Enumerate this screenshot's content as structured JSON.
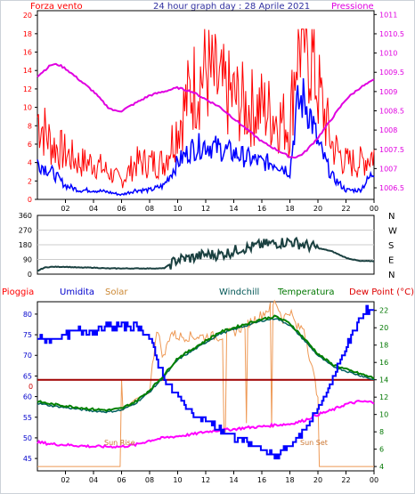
{
  "header": {
    "left_label": "Forza vento",
    "title": "24 hour graph day : 28 Aprile 2021",
    "right_label": "Pressione"
  },
  "colors": {
    "frame": "#ccd2d8",
    "wind_gust": "#ff0000",
    "wind_avg": "#0000ff",
    "pressure": "#e000e0",
    "direction": "#1a4040",
    "humidity": "#0000ff",
    "solar": "#ee9955",
    "windchill": "#006060",
    "temperature": "#008000",
    "dew_point": "#ff00ff",
    "rain": "#a00000",
    "label_red": "#ff0000",
    "label_humidity": "#0000cc",
    "label_solar": "#cc8833",
    "label_windchill": "#005555",
    "label_temp": "#007700",
    "label_dew": "#dd0000"
  },
  "chart_data": [
    {
      "type": "line",
      "title": "24 hour graph day : 28 Aprile 2021",
      "x_ticks": [
        "02",
        "04",
        "06",
        "08",
        "10",
        "12",
        "14",
        "16",
        "18",
        "20",
        "22",
        "00"
      ],
      "y_left_ticks": [
        "0",
        "2",
        "4",
        "6",
        "8",
        "10",
        "12",
        "14",
        "16",
        "18",
        "20"
      ],
      "y_right_ticks": [
        "1006.5",
        "1007",
        "1007.5",
        "1008",
        "1008.5",
        "1009",
        "1009.5",
        "1010",
        "1010.5",
        "1011"
      ],
      "ylim_left": [
        0,
        20.5
      ],
      "ylim_right": [
        1006.2,
        1011.1
      ],
      "xlim_hours": [
        0,
        24
      ],
      "series": [
        {
          "name": "Forza vento",
          "axis": "left",
          "x": [
            0,
            1,
            2,
            3,
            4,
            5,
            6,
            7,
            8,
            9,
            10,
            11,
            12,
            13,
            14,
            15,
            16,
            17,
            18,
            18.5,
            19,
            19.5,
            20,
            21,
            22,
            23,
            24
          ],
          "values": [
            9,
            6,
            5,
            4,
            4,
            3,
            2,
            4,
            4,
            4,
            8,
            12,
            14,
            12,
            11,
            10,
            10,
            9,
            8,
            17,
            18,
            16,
            12,
            6,
            4,
            4,
            5
          ]
        },
        {
          "name": "",
          "axis": "left",
          "x": [
            0,
            1,
            2,
            3,
            4,
            5,
            6,
            7,
            8,
            9,
            10,
            11,
            12,
            13,
            14,
            15,
            16,
            17,
            18,
            18.5,
            19,
            19.5,
            20,
            21,
            22,
            23,
            24
          ],
          "values": [
            4,
            3,
            1.5,
            1,
            1,
            0.8,
            0.5,
            1,
            1,
            1.5,
            4,
            5.5,
            6,
            5.5,
            5,
            4.5,
            4,
            4,
            3,
            10,
            11,
            9,
            6,
            2.5,
            1,
            1,
            3
          ]
        },
        {
          "name": "Pressione",
          "axis": "right",
          "x": [
            0,
            1,
            1.5,
            2,
            3,
            4,
            5,
            5.5,
            6,
            7,
            8,
            9,
            10,
            11,
            12,
            13,
            14,
            15,
            16,
            17,
            18,
            18.5,
            19,
            20,
            21,
            22,
            23,
            24
          ],
          "values": [
            1009.4,
            1009.7,
            1009.7,
            1009.6,
            1009.3,
            1009.0,
            1008.6,
            1008.5,
            1008.5,
            1008.7,
            1008.9,
            1009.0,
            1009.1,
            1009.0,
            1008.8,
            1008.6,
            1008.3,
            1008.0,
            1007.7,
            1007.5,
            1007.3,
            1007.3,
            1007.4,
            1007.8,
            1008.3,
            1008.8,
            1009.1,
            1009.3
          ]
        }
      ]
    },
    {
      "type": "line",
      "y_right_ticks": [
        "N",
        "W",
        "S",
        "E",
        "N"
      ],
      "y_left_ticks": [
        "0",
        "90",
        "180",
        "270",
        "360"
      ],
      "ylim": [
        0,
        360
      ],
      "xlim_hours": [
        0,
        24
      ],
      "series": [
        {
          "name": "",
          "x": [
            0,
            0.5,
            1,
            2,
            3,
            4,
            5,
            6,
            7,
            8,
            9,
            10,
            11,
            12,
            13,
            14,
            14.5,
            15,
            16,
            17,
            18,
            19,
            20,
            21,
            22,
            23,
            24
          ],
          "values": [
            20,
            40,
            45,
            45,
            40,
            40,
            35,
            35,
            35,
            35,
            35,
            90,
            100,
            120,
            120,
            140,
            160,
            160,
            180,
            190,
            200,
            180,
            160,
            140,
            100,
            80,
            80
          ]
        }
      ]
    },
    {
      "type": "line",
      "labels": {
        "rain": "Pioggia",
        "humidity": "Umidita",
        "solar": "Solar",
        "windchill": "Windchill",
        "temperature": "Temperatura",
        "dew_point": "Dew Point (°C)"
      },
      "annotations": [
        "Sun Rise",
        "Sun Set"
      ],
      "y_left_ticks": [
        "45",
        "50",
        "55",
        "60",
        "65",
        "70",
        "75",
        "80"
      ],
      "y_right_ticks": [
        "4",
        "6",
        "8",
        "10",
        "12",
        "14",
        "16",
        "18",
        "20",
        "22"
      ],
      "rain_value_label": "0",
      "ylim_left": [
        42,
        83
      ],
      "ylim_right": [
        3.5,
        23
      ],
      "xlim_hours": [
        0,
        24
      ],
      "series": [
        {
          "name": "Umidita",
          "axis": "left",
          "x": [
            0,
            1,
            2,
            3,
            4,
            5,
            6,
            6.5,
            7,
            7.5,
            8,
            8.5,
            9,
            9.5,
            10,
            11,
            12,
            13,
            14,
            15,
            16,
            16.5,
            17,
            17.5,
            18,
            19,
            20,
            21,
            22,
            23,
            23.5,
            24
          ],
          "values": [
            74,
            74,
            75,
            76,
            76,
            77,
            77,
            77,
            77,
            76,
            74,
            69,
            65,
            62,
            60,
            56,
            54,
            52,
            50,
            49,
            47,
            46,
            45,
            47,
            48,
            52,
            57,
            64,
            72,
            79,
            81,
            81
          ]
        },
        {
          "name": "Temperatura",
          "axis": "right",
          "x": [
            0,
            1,
            2,
            3,
            4,
            5,
            6,
            7,
            8,
            9,
            10,
            11,
            12,
            13,
            14,
            15,
            16,
            17,
            18,
            19,
            20,
            21,
            22,
            23,
            24
          ],
          "values": [
            11.5,
            11.2,
            11.0,
            10.8,
            10.6,
            10.5,
            10.7,
            11.5,
            12.8,
            14.5,
            16.5,
            17.5,
            18.5,
            19.5,
            20.0,
            20.5,
            21.0,
            21.3,
            20.5,
            18.8,
            17.0,
            15.8,
            15.2,
            14.7,
            14.2
          ]
        },
        {
          "name": "Windchill",
          "axis": "right",
          "x": [
            0,
            1,
            2,
            3,
            4,
            5,
            6,
            7,
            8,
            9,
            10,
            11,
            12,
            13,
            14,
            15,
            16,
            17,
            18,
            19,
            20,
            21,
            22,
            23,
            24
          ],
          "values": [
            11.3,
            11.0,
            10.8,
            10.6,
            10.4,
            10.3,
            10.5,
            11.3,
            12.6,
            14.3,
            16.3,
            17.3,
            18.3,
            19.3,
            19.8,
            20.3,
            20.8,
            21.1,
            20.3,
            18.6,
            16.8,
            15.6,
            15.0,
            14.5,
            14.0
          ]
        },
        {
          "name": "Dew Point",
          "axis": "right",
          "x": [
            0,
            1,
            2,
            3,
            4,
            5,
            6,
            7,
            8,
            9,
            10,
            11,
            12,
            13,
            14,
            15,
            16,
            17,
            18,
            19,
            20,
            21,
            22,
            23,
            24
          ],
          "values": [
            6.8,
            6.6,
            6.5,
            6.4,
            6.3,
            6.3,
            6.3,
            6.5,
            7.0,
            7.3,
            7.5,
            7.7,
            8.0,
            8.2,
            8.3,
            8.5,
            8.6,
            8.8,
            8.9,
            9.3,
            10.0,
            10.5,
            11.2,
            11.5,
            11.4
          ]
        },
        {
          "name": "Solar",
          "axis": "right",
          "x": [
            0,
            5.9,
            6.0,
            6.1,
            7,
            8,
            8.5,
            9,
            9.5,
            10,
            11,
            12,
            13,
            14,
            15,
            16,
            17,
            17.5,
            18,
            18.5,
            19,
            19.5,
            20,
            20.1,
            20.2,
            24
          ],
          "values": [
            4.0,
            4.0,
            14.0,
            10.5,
            11.8,
            12.5,
            20.0,
            16.5,
            19.5,
            19.0,
            19.0,
            19.0,
            19.0,
            19.5,
            20.5,
            21.5,
            23.0,
            21.0,
            22.0,
            20.0,
            20.0,
            16.0,
            12.0,
            4.0,
            4.0,
            4.0
          ]
        },
        {
          "name": "Pioggia",
          "axis": "right",
          "x": [
            0,
            24
          ],
          "values": [
            14.0,
            14.0
          ]
        }
      ]
    }
  ]
}
